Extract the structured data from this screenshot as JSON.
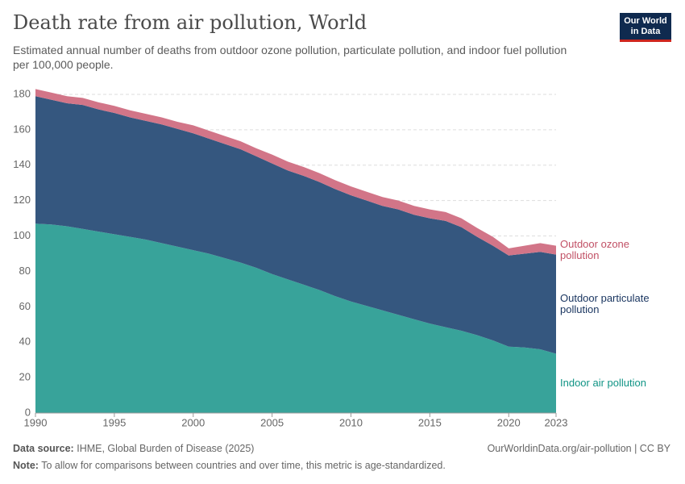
{
  "chart_data": {
    "type": "stacked_area",
    "title": "Death rate from air pollution, World",
    "subtitle": "Estimated annual number of deaths from outdoor ozone pollution, particulate pollution, and indoor fuel pollution per 100,000 people.",
    "x": [
      1990,
      1991,
      1992,
      1993,
      1994,
      1995,
      1996,
      1997,
      1998,
      1999,
      2000,
      2001,
      2002,
      2003,
      2004,
      2005,
      2006,
      2007,
      2008,
      2009,
      2010,
      2011,
      2012,
      2013,
      2014,
      2015,
      2016,
      2017,
      2018,
      2019,
      2020,
      2021,
      2022,
      2023
    ],
    "series": [
      {
        "name": "Indoor air pollution",
        "color": "#38a39a",
        "label_color": "#109485",
        "values": [
          107,
          106.5,
          105.5,
          104,
          102.5,
          101,
          99.5,
          98,
          96,
          94,
          92,
          90,
          87.5,
          85,
          82,
          78.5,
          75.5,
          72.5,
          69.5,
          66,
          63,
          60.5,
          58,
          55.5,
          53,
          50.5,
          48.5,
          46.5,
          44,
          41,
          37.5,
          37,
          36,
          33.5
        ]
      },
      {
        "name": "Outdoor particulate pollution",
        "color": "#35577f",
        "label_color": "#18345f",
        "values": [
          72,
          70.5,
          69.5,
          70,
          69,
          68.5,
          67.5,
          67,
          67,
          66.5,
          66,
          65,
          64.5,
          64,
          63,
          62.5,
          61.5,
          61.5,
          61,
          60.5,
          60,
          59.5,
          59,
          59.5,
          59,
          59.5,
          60,
          58.5,
          55.5,
          53.5,
          51.5,
          53,
          55,
          56
        ]
      },
      {
        "name": "Outdoor ozone pollution",
        "color": "#d27588",
        "label_color": "#c15065",
        "values": [
          4,
          4,
          4,
          4,
          4,
          4,
          4,
          4,
          4,
          4,
          4.5,
          4.5,
          4.5,
          4.5,
          4.5,
          5,
          5,
          5,
          5,
          5,
          5,
          5,
          5,
          5,
          5,
          5,
          5,
          5,
          5,
          5,
          4,
          4.5,
          5,
          5
        ]
      }
    ],
    "xlim": [
      1990,
      2023
    ],
    "xticks": [
      1990,
      1995,
      2000,
      2005,
      2010,
      2015,
      2020,
      2023
    ],
    "ylim": [
      0,
      180
    ],
    "yticks": [
      0,
      20,
      40,
      60,
      80,
      100,
      120,
      140,
      160,
      180
    ],
    "grid": true
  },
  "logo": [
    "Our World",
    "in Data"
  ],
  "footer": {
    "source_label": "Data source:",
    "source": "IHME, Global Burden of Disease (2025)",
    "license": "OurWorldinData.org/air-pollution | CC BY",
    "note_label": "Note:",
    "note": "To allow for comparisons between countries and over time, this metric is age-standardized."
  }
}
